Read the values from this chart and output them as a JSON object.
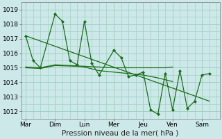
{
  "bg_color": "#cce8e8",
  "grid_color": "#99ccbb",
  "line_color": "#1a6e1a",
  "xlabel": "Pression niveau de la mer( hPa )",
  "xlabel_fontsize": 7.5,
  "tick_fontsize": 6.5,
  "ylim": [
    1011.5,
    1019.5
  ],
  "yticks": [
    1012,
    1013,
    1014,
    1015,
    1016,
    1017,
    1018,
    1019
  ],
  "x_labels": [
    "Mar",
    "Dim",
    "Lun",
    "Mer",
    "Jeu",
    "Ven",
    "Sam"
  ],
  "x_positions": [
    0,
    1,
    2,
    3,
    4,
    5,
    6
  ],
  "xlim": [
    -0.15,
    6.6
  ],
  "series": [
    {
      "x": [
        0.0,
        0.25,
        0.5,
        1.0,
        1.25,
        1.5,
        1.75,
        2.0,
        2.25,
        2.5,
        3.0,
        3.25,
        3.5,
        3.75,
        4.0,
        4.25,
        4.5,
        4.75,
        5.0,
        5.25,
        5.5,
        5.75,
        6.0,
        6.25
      ],
      "y": [
        1017.2,
        1015.5,
        1015.0,
        1018.7,
        1018.2,
        1015.5,
        1015.2,
        1018.2,
        1015.3,
        1014.5,
        1016.2,
        1015.7,
        1014.4,
        1014.5,
        1014.7,
        1012.1,
        1011.8,
        1014.6,
        1012.1,
        1014.8,
        1012.2,
        1012.7,
        1014.5,
        1014.6
      ],
      "marker": "D",
      "markersize": 2.0,
      "linewidth": 0.9
    },
    {
      "x": [
        0.0,
        6.25
      ],
      "y": [
        1017.2,
        1012.7
      ],
      "marker": null,
      "markersize": 0,
      "linewidth": 0.9
    },
    {
      "x": [
        0.0,
        0.5,
        1.0,
        2.0,
        3.0,
        4.0,
        4.75,
        5.0
      ],
      "y": [
        1015.05,
        1015.0,
        1015.2,
        1015.1,
        1015.0,
        1015.0,
        1015.0,
        1015.05
      ],
      "marker": null,
      "markersize": 0,
      "linewidth": 0.9
    },
    {
      "x": [
        0.0,
        0.5,
        1.0,
        1.75,
        2.0,
        2.5,
        3.0,
        3.5,
        4.0,
        4.5,
        5.0
      ],
      "y": [
        1015.0,
        1014.95,
        1015.15,
        1015.1,
        1015.05,
        1014.8,
        1014.7,
        1014.6,
        1014.5,
        1014.3,
        1014.05
      ],
      "marker": null,
      "markersize": 0,
      "linewidth": 0.9
    }
  ]
}
